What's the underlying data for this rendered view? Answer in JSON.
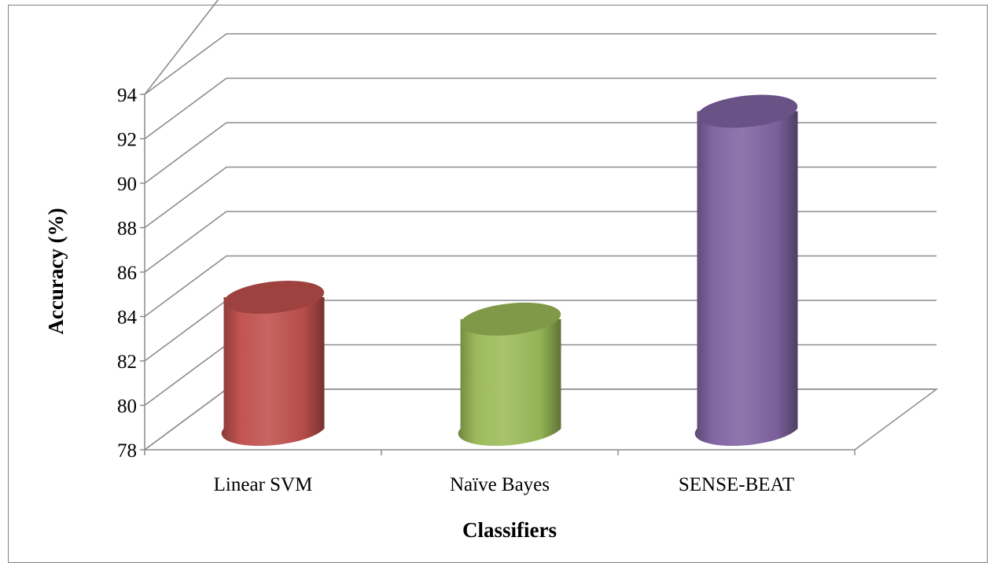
{
  "chart_data": {
    "type": "bar",
    "style": "3d-cylinder",
    "categories": [
      "Linear SVM",
      "Naïve Bayes",
      "SENSE-BEAT"
    ],
    "values": [
      84,
      83,
      92.5
    ],
    "colors": [
      "#c0504d",
      "#9bbb59",
      "#8064a2"
    ],
    "xlabel": "Classifiers",
    "ylabel": "Accuracy (%)",
    "ylim": [
      78,
      94
    ],
    "yticks": [
      78,
      80,
      82,
      84,
      86,
      88,
      90,
      92,
      94
    ],
    "grid": true
  }
}
